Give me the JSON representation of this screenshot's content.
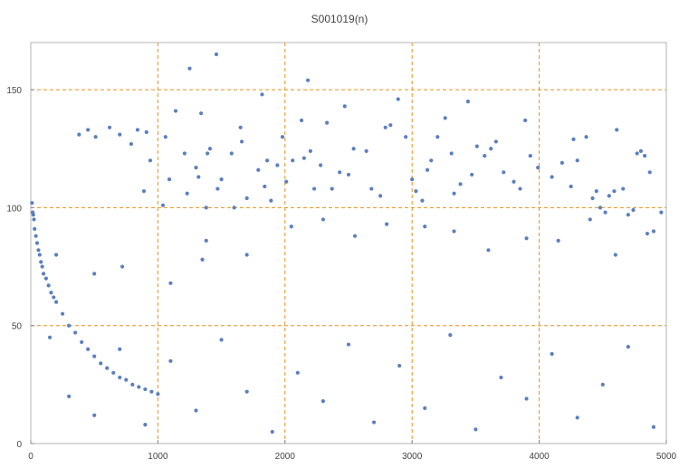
{
  "chart_data": {
    "type": "scatter",
    "title": "S001019(n)",
    "xlabel": "",
    "ylabel": "",
    "xlim": [
      0,
      5000
    ],
    "ylim": [
      0,
      170
    ],
    "x_ticks": [
      0,
      1000,
      2000,
      3000,
      4000,
      5000
    ],
    "y_ticks": [
      0,
      50,
      100,
      150
    ],
    "gridlines_x": [
      1000,
      2000,
      3000,
      4000
    ],
    "gridlines_y": [
      50,
      100,
      150
    ],
    "grid_style": "dashed",
    "point_color": "#5b7fbf",
    "grid_color": "#e8901c",
    "notes_visible": "points concentrated below 50; a curved band descending from about 95 near n=0 to about 20 near n=1000",
    "series": [
      {
        "points": [
          [
            10,
            102
          ],
          [
            15,
            98
          ],
          [
            20,
            97
          ],
          [
            25,
            95
          ],
          [
            30,
            91
          ],
          [
            40,
            88
          ],
          [
            50,
            85
          ],
          [
            60,
            82
          ],
          [
            70,
            80
          ],
          [
            80,
            77
          ],
          [
            90,
            75
          ],
          [
            100,
            72
          ],
          [
            120,
            70
          ],
          [
            140,
            67
          ],
          [
            160,
            64
          ],
          [
            180,
            62
          ],
          [
            200,
            60
          ],
          [
            250,
            55
          ],
          [
            300,
            50
          ],
          [
            350,
            47
          ],
          [
            400,
            43
          ],
          [
            450,
            40
          ],
          [
            500,
            37
          ],
          [
            550,
            34
          ],
          [
            600,
            32
          ],
          [
            650,
            30
          ],
          [
            700,
            28
          ],
          [
            750,
            27
          ],
          [
            800,
            25
          ],
          [
            850,
            24
          ],
          [
            900,
            23
          ],
          [
            950,
            22
          ],
          [
            1000,
            21
          ],
          [
            380,
            131
          ],
          [
            450,
            133
          ],
          [
            510,
            130
          ],
          [
            620,
            134
          ],
          [
            700,
            131
          ],
          [
            790,
            127
          ],
          [
            840,
            133
          ],
          [
            910,
            132
          ],
          [
            940,
            120
          ],
          [
            890,
            107
          ],
          [
            1040,
            101
          ],
          [
            1060,
            130
          ],
          [
            1090,
            112
          ],
          [
            1140,
            141
          ],
          [
            1210,
            123
          ],
          [
            1230,
            106
          ],
          [
            1250,
            159
          ],
          [
            1300,
            117
          ],
          [
            1320,
            113
          ],
          [
            1340,
            140
          ],
          [
            1380,
            86
          ],
          [
            1380,
            100
          ],
          [
            1390,
            123
          ],
          [
            1410,
            125
          ],
          [
            1460,
            165
          ],
          [
            1470,
            108
          ],
          [
            1500,
            112
          ],
          [
            1580,
            123
          ],
          [
            1600,
            100
          ],
          [
            1650,
            134
          ],
          [
            1660,
            128
          ],
          [
            1700,
            104
          ],
          [
            1790,
            116
          ],
          [
            1820,
            148
          ],
          [
            1840,
            109
          ],
          [
            1860,
            120
          ],
          [
            1890,
            103
          ],
          [
            1940,
            118
          ],
          [
            1980,
            130
          ],
          [
            2010,
            111
          ],
          [
            2060,
            120
          ],
          [
            2130,
            137
          ],
          [
            2150,
            121
          ],
          [
            2180,
            154
          ],
          [
            2200,
            124
          ],
          [
            2230,
            108
          ],
          [
            2280,
            118
          ],
          [
            2330,
            136
          ],
          [
            2370,
            108
          ],
          [
            2430,
            115
          ],
          [
            2470,
            143
          ],
          [
            2500,
            114
          ],
          [
            2540,
            125
          ],
          [
            2640,
            124
          ],
          [
            2680,
            108
          ],
          [
            2750,
            105
          ],
          [
            2790,
            134
          ],
          [
            2830,
            135
          ],
          [
            2890,
            146
          ],
          [
            2950,
            130
          ],
          [
            3000,
            112
          ],
          [
            3030,
            107
          ],
          [
            3080,
            103
          ],
          [
            3120,
            116
          ],
          [
            3150,
            120
          ],
          [
            3200,
            130
          ],
          [
            3260,
            138
          ],
          [
            3310,
            123
          ],
          [
            3330,
            106
          ],
          [
            3380,
            110
          ],
          [
            3440,
            145
          ],
          [
            3470,
            114
          ],
          [
            3510,
            126
          ],
          [
            3570,
            122
          ],
          [
            3620,
            125
          ],
          [
            3660,
            128
          ],
          [
            3720,
            115
          ],
          [
            3800,
            111
          ],
          [
            3850,
            108
          ],
          [
            3890,
            137
          ],
          [
            3930,
            122
          ],
          [
            3990,
            117
          ],
          [
            4100,
            113
          ],
          [
            4180,
            119
          ],
          [
            4250,
            109
          ],
          [
            4270,
            129
          ],
          [
            4300,
            120
          ],
          [
            4370,
            130
          ],
          [
            4420,
            104
          ],
          [
            4450,
            107
          ],
          [
            4480,
            100
          ],
          [
            4520,
            98
          ],
          [
            4550,
            105
          ],
          [
            4590,
            107
          ],
          [
            4610,
            133
          ],
          [
            4660,
            108
          ],
          [
            4700,
            97
          ],
          [
            4740,
            99
          ],
          [
            4770,
            123
          ],
          [
            4800,
            124
          ],
          [
            4830,
            122
          ],
          [
            4870,
            115
          ],
          [
            4900,
            90
          ],
          [
            4960,
            98
          ],
          [
            200,
            80
          ],
          [
            500,
            72
          ],
          [
            720,
            75
          ],
          [
            1100,
            68
          ],
          [
            1350,
            78
          ],
          [
            1700,
            80
          ],
          [
            2050,
            92
          ],
          [
            2300,
            95
          ],
          [
            2550,
            88
          ],
          [
            2800,
            93
          ],
          [
            3100,
            92
          ],
          [
            3330,
            90
          ],
          [
            3600,
            82
          ],
          [
            3900,
            87
          ],
          [
            4150,
            86
          ],
          [
            4400,
            95
          ],
          [
            4600,
            80
          ],
          [
            4850,
            89
          ],
          [
            150,
            45
          ],
          [
            300,
            20
          ],
          [
            500,
            12
          ],
          [
            700,
            40
          ],
          [
            900,
            8
          ],
          [
            1100,
            35
          ],
          [
            1300,
            14
          ],
          [
            1500,
            44
          ],
          [
            1700,
            22
          ],
          [
            1900,
            5
          ],
          [
            2100,
            30
          ],
          [
            2300,
            18
          ],
          [
            2500,
            42
          ],
          [
            2700,
            9
          ],
          [
            2900,
            33
          ],
          [
            3100,
            15
          ],
          [
            3300,
            46
          ],
          [
            3500,
            6
          ],
          [
            3700,
            28
          ],
          [
            3900,
            19
          ],
          [
            4100,
            38
          ],
          [
            4300,
            11
          ],
          [
            4500,
            25
          ],
          [
            4700,
            41
          ],
          [
            4900,
            7
          ]
        ]
      }
    ]
  }
}
